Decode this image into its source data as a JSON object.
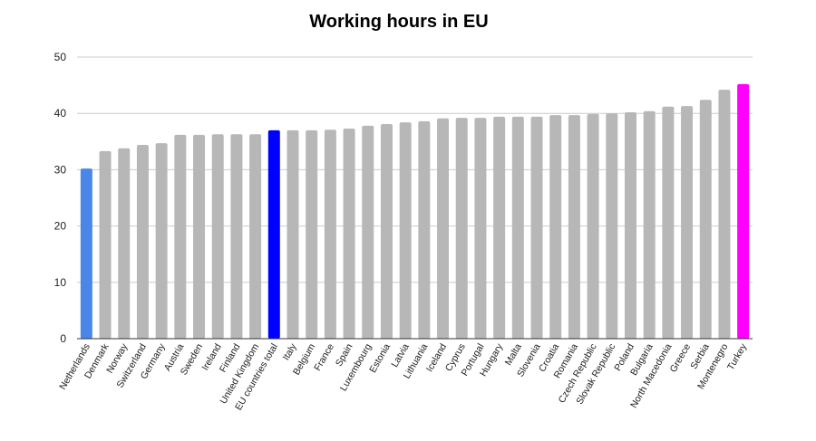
{
  "chart_data": {
    "type": "bar",
    "title": "Working hours in EU",
    "categories": [
      "Netherlands",
      "Denmark",
      "Norway",
      "Switzerland",
      "Germany",
      "Austria",
      "Sweden",
      "Ireland",
      "Finland",
      "United Kingdom",
      "EU countries total",
      "Italy",
      "Belgium",
      "France",
      "Spain",
      "Luxembourg",
      "Estonia",
      "Latvia",
      "Lithuania",
      "Iceland",
      "Cyprus",
      "Portugal",
      "Hungary",
      "Malta",
      "Slovenia",
      "Croatia",
      "Romania",
      "Czech Republic",
      "Slovak Republic",
      "Poland",
      "Bulgaria",
      "North Macedonia",
      "Greece",
      "Serbia",
      "Montenegro",
      "Turkey"
    ],
    "values": [
      30.2,
      33.3,
      33.8,
      34.4,
      34.7,
      36.2,
      36.2,
      36.3,
      36.3,
      36.3,
      37.0,
      37.0,
      37.0,
      37.1,
      37.3,
      37.8,
      38.1,
      38.4,
      38.6,
      39.1,
      39.2,
      39.2,
      39.4,
      39.4,
      39.4,
      39.7,
      39.7,
      39.9,
      40.0,
      40.2,
      40.4,
      41.2,
      41.3,
      42.4,
      44.2,
      45.2
    ],
    "colors": [
      "#4a86e8",
      "#b7b7b7",
      "#b7b7b7",
      "#b7b7b7",
      "#b7b7b7",
      "#b7b7b7",
      "#b7b7b7",
      "#b7b7b7",
      "#b7b7b7",
      "#b7b7b7",
      "#0000ff",
      "#b7b7b7",
      "#b7b7b7",
      "#b7b7b7",
      "#b7b7b7",
      "#b7b7b7",
      "#b7b7b7",
      "#b7b7b7",
      "#b7b7b7",
      "#b7b7b7",
      "#b7b7b7",
      "#b7b7b7",
      "#b7b7b7",
      "#b7b7b7",
      "#b7b7b7",
      "#b7b7b7",
      "#b7b7b7",
      "#b7b7b7",
      "#b7b7b7",
      "#b7b7b7",
      "#b7b7b7",
      "#b7b7b7",
      "#b7b7b7",
      "#b7b7b7",
      "#b7b7b7",
      "#ff00ff"
    ],
    "ylim": [
      0,
      50
    ],
    "yticks": [
      0,
      10,
      20,
      30,
      40,
      50
    ],
    "grid": true
  }
}
